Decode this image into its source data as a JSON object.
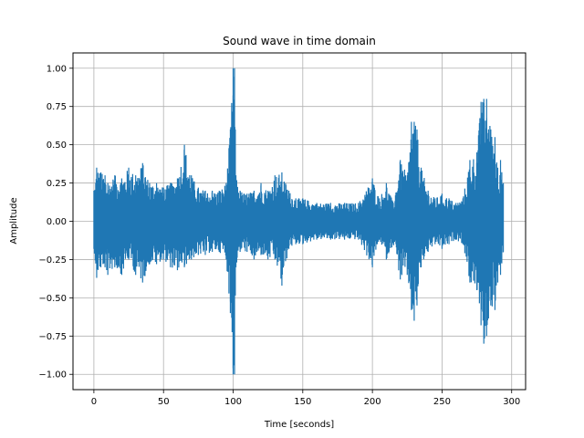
{
  "chart_data": {
    "type": "line",
    "title": "Sound wave in time domain",
    "xlabel": "Time [seconds]",
    "ylabel": "Amplitude",
    "xlim": [
      -15,
      310
    ],
    "ylim": [
      -1.1,
      1.1
    ],
    "xticks": [
      0,
      50,
      100,
      150,
      200,
      250,
      300
    ],
    "yticks": [
      -1.0,
      -0.75,
      -0.5,
      -0.25,
      0.0,
      0.25,
      0.5,
      0.75,
      1.0
    ],
    "xtick_labels": [
      "0",
      "50",
      "100",
      "150",
      "200",
      "250",
      "300"
    ],
    "ytick_labels": [
      "−1.00",
      "−0.75",
      "−0.50",
      "−0.25",
      "0.00",
      "0.25",
      "0.50",
      "0.75",
      "1.00"
    ],
    "grid": true,
    "legend": "none",
    "series": [
      {
        "color": "#1f77b4",
        "x": [
          0,
          2,
          5,
          8,
          10,
          15,
          20,
          25,
          30,
          35,
          40,
          45,
          50,
          55,
          60,
          65,
          70,
          75,
          80,
          85,
          90,
          95,
          98,
          100,
          101,
          102,
          105,
          110,
          115,
          120,
          125,
          130,
          135,
          140,
          145,
          150,
          160,
          170,
          180,
          190,
          200,
          205,
          210,
          215,
          220,
          225,
          228,
          230,
          232,
          235,
          240,
          245,
          250,
          255,
          260,
          265,
          270,
          275,
          278,
          280,
          282,
          285,
          288,
          290,
          292,
          294
        ],
        "y_max": [
          0.2,
          0.35,
          0.32,
          0.3,
          0.25,
          0.3,
          0.28,
          0.35,
          0.3,
          0.38,
          0.25,
          0.25,
          0.22,
          0.25,
          0.28,
          0.5,
          0.3,
          0.22,
          0.2,
          0.2,
          0.2,
          0.25,
          0.6,
          1.0,
          1.0,
          0.3,
          0.2,
          0.18,
          0.2,
          0.25,
          0.2,
          0.3,
          0.32,
          0.2,
          0.15,
          0.15,
          0.12,
          0.12,
          0.12,
          0.12,
          0.28,
          0.15,
          0.25,
          0.12,
          0.4,
          0.3,
          0.65,
          0.65,
          0.6,
          0.35,
          0.2,
          0.15,
          0.18,
          0.15,
          0.12,
          0.15,
          0.4,
          0.45,
          0.78,
          0.8,
          0.8,
          0.6,
          0.55,
          0.35,
          0.4,
          0.25
        ],
        "y_min": [
          -0.18,
          -0.37,
          -0.3,
          -0.3,
          -0.35,
          -0.3,
          -0.35,
          -0.25,
          -0.35,
          -0.4,
          -0.28,
          -0.28,
          -0.25,
          -0.3,
          -0.32,
          -0.3,
          -0.25,
          -0.22,
          -0.22,
          -0.2,
          -0.2,
          -0.25,
          -0.6,
          -1.0,
          -1.0,
          -0.3,
          -0.2,
          -0.2,
          -0.25,
          -0.22,
          -0.25,
          -0.25,
          -0.42,
          -0.18,
          -0.15,
          -0.15,
          -0.12,
          -0.12,
          -0.12,
          -0.12,
          -0.3,
          -0.12,
          -0.25,
          -0.15,
          -0.38,
          -0.35,
          -0.58,
          -0.65,
          -0.55,
          -0.3,
          -0.2,
          -0.15,
          -0.18,
          -0.15,
          -0.12,
          -0.15,
          -0.4,
          -0.45,
          -0.68,
          -0.8,
          -0.75,
          -0.55,
          -0.58,
          -0.4,
          -0.35,
          -0.2
        ]
      }
    ]
  }
}
